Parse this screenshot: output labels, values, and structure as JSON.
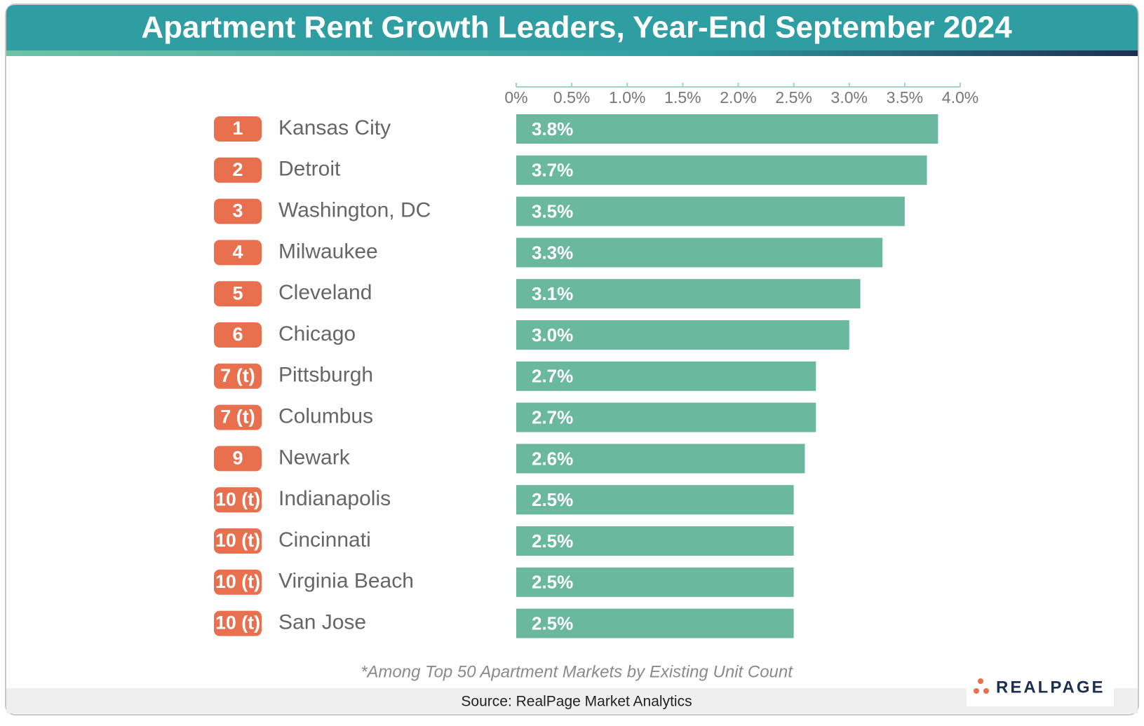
{
  "chart_data": {
    "type": "bar",
    "orientation": "horizontal",
    "title": "Apartment Rent Growth Leaders, Year-End September 2024",
    "ranks": [
      "1",
      "2",
      "3",
      "4",
      "5",
      "6",
      "7 (t)",
      "7 (t)",
      "9",
      "10 (t)",
      "10 (t)",
      "10 (t)",
      "10 (t)"
    ],
    "categories": [
      "Kansas City",
      "Detroit",
      "Washington, DC",
      "Milwaukee",
      "Cleveland",
      "Chicago",
      "Pittsburgh",
      "Columbus",
      "Newark",
      "Indianapolis",
      "Cincinnati",
      "Virginia Beach",
      "San Jose"
    ],
    "values": [
      3.8,
      3.7,
      3.5,
      3.3,
      3.1,
      3.0,
      2.7,
      2.7,
      2.6,
      2.5,
      2.5,
      2.5,
      2.5
    ],
    "value_labels": [
      "3.8%",
      "3.7%",
      "3.5%",
      "3.3%",
      "3.1%",
      "3.0%",
      "2.7%",
      "2.7%",
      "2.6%",
      "2.5%",
      "2.5%",
      "2.5%",
      "2.5%"
    ],
    "color": "#6ab89e",
    "xlim": [
      0,
      4
    ],
    "xticks": [
      {
        "value": 0,
        "label": "0%"
      },
      {
        "value": 0.5,
        "label": "0.5%"
      },
      {
        "value": 1,
        "label": "1.0%"
      },
      {
        "value": 1.5,
        "label": "1.5%"
      },
      {
        "value": 2,
        "label": "2.0%"
      },
      {
        "value": 2.5,
        "label": "2.5%"
      },
      {
        "value": 3,
        "label": "3.0%"
      },
      {
        "value": 3.5,
        "label": "3.5%"
      },
      {
        "value": 4,
        "label": "4.0%"
      }
    ],
    "footnote": "*Among Top 50 Apartment Markets by Existing Unit Count",
    "source": "Source: RealPage Market Analytics",
    "logo": "REALPAGE"
  }
}
